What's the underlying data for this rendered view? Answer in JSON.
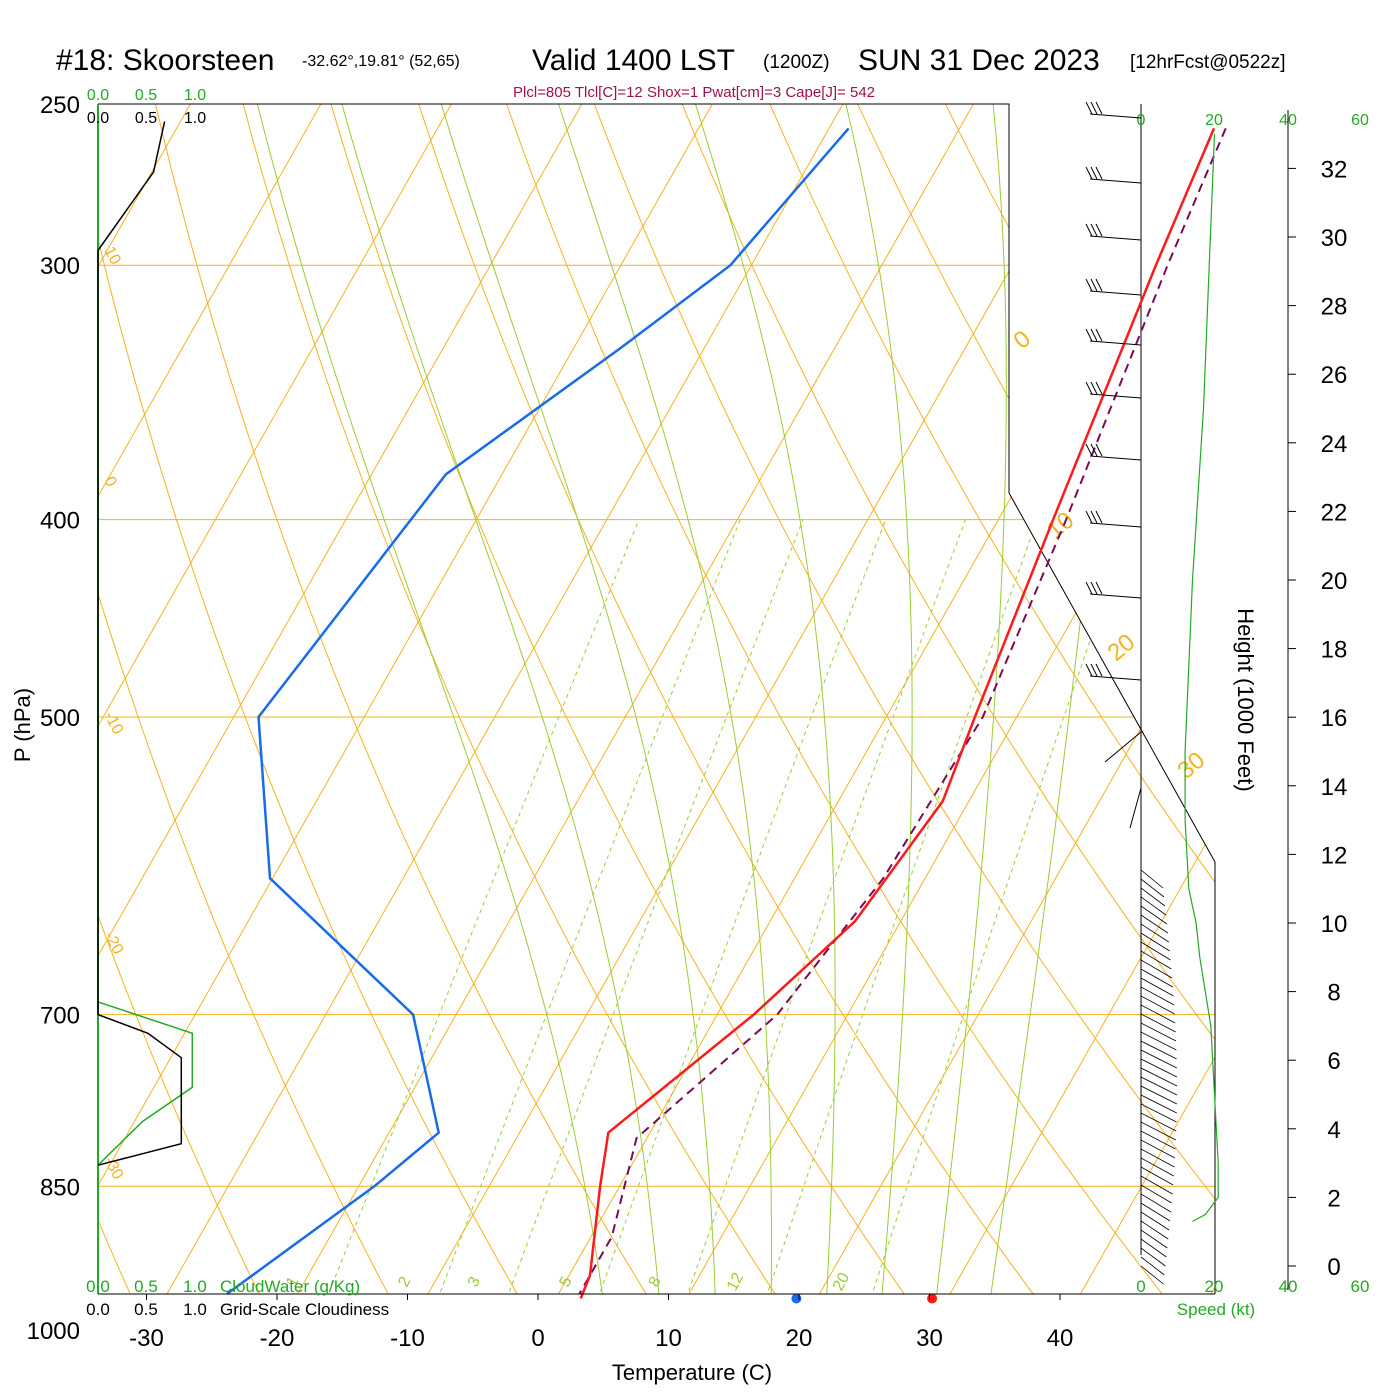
{
  "header": {
    "station": "#18: Skoorsteen",
    "coords": "-32.62°,19.81° (52,65)",
    "valid": "Valid 1400 LST",
    "zulu": "(1200Z)",
    "date": "SUN 31 Dec 2023",
    "forecast": "[12hrFcst@0522z]",
    "indices": "Plcl=805 Tlcl[C]=12 Shox=1 Pwat[cm]=3 Cape[J]= 542"
  },
  "colors": {
    "temperature": "#ff1a1a",
    "dewpoint": "#1a6be8",
    "parcel": "#7a0a5a",
    "isobar_isotherm": "#f5b21e",
    "moist_adiabat": "#9acd32",
    "cloud_water": "#22aa22",
    "axis_green": "#22aa22",
    "indices_text": "#a0104e"
  },
  "chart_data": {
    "type": "skew-t",
    "xlabel": "Temperature (C)",
    "ylabel": "P (hPa)",
    "height_label": "Height (1000 Feet)",
    "temperature_ticks": [
      "-30",
      "-20",
      "-10",
      "0",
      "10",
      "20",
      "30",
      "40"
    ],
    "pressure_ticks": [
      "250",
      "300",
      "400",
      "500",
      "700",
      "850",
      "1000"
    ],
    "height_ticks": [
      "32",
      "30",
      "28",
      "26",
      "24",
      "22",
      "20",
      "18",
      "16",
      "14",
      "12",
      "10",
      "8",
      "6",
      "4",
      "2",
      "0"
    ],
    "skew_isotherm_labels": [
      "10",
      "0",
      "-10",
      "-20",
      "-30"
    ],
    "dry_adiabat_labels": [
      "0",
      "10",
      "20",
      "30"
    ],
    "mixing_ratio_labels": [
      "1",
      "2",
      "3",
      "5",
      "8",
      "12",
      "20"
    ],
    "cloud_scale_top_green": [
      "0.0",
      "0.5",
      "1.0"
    ],
    "cloud_scale_top_black": [
      "0.0",
      "0.5",
      "1.0"
    ],
    "cloud_scale_bottom_green": [
      "0.0",
      "0.5",
      "1.0"
    ],
    "cloud_scale_bottom_black": [
      "0.0",
      "0.5",
      "1.0"
    ],
    "cloud_water_label": "CloudWater (g/Kg)",
    "cloudiness_label": "Grid-Scale Cloudiness",
    "speed_ticks": [
      "0",
      "20",
      "40",
      "60"
    ],
    "speed_label": "Speed (kt)",
    "temperature_profile": [
      {
        "p": 257,
        "t": -0.5
      },
      {
        "p": 300,
        "t": 1.0
      },
      {
        "p": 400,
        "t": 4.2
      },
      {
        "p": 500,
        "t": 6.8
      },
      {
        "p": 550,
        "t": 8.0
      },
      {
        "p": 630,
        "t": 6.5
      },
      {
        "p": 700,
        "t": 2.8
      },
      {
        "p": 800,
        "t": -3.2
      },
      {
        "p": 850,
        "t": -1.5
      },
      {
        "p": 940,
        "t": 1.6
      },
      {
        "p": 965,
        "t": 1.9
      }
    ],
    "dewpoint_profile": [
      {
        "p": 257,
        "t": -28.5
      },
      {
        "p": 300,
        "t": -31.6
      },
      {
        "p": 330,
        "t": -36.5
      },
      {
        "p": 380,
        "t": -44.3
      },
      {
        "p": 500,
        "t": -48.1
      },
      {
        "p": 600,
        "t": -40.2
      },
      {
        "p": 700,
        "t": -23.3
      },
      {
        "p": 800,
        "t": -16.2
      },
      {
        "p": 850,
        "t": -18.8
      },
      {
        "p": 960,
        "t": -25.4
      }
    ],
    "parcel_profile": [
      {
        "p": 257,
        "t": 0.4
      },
      {
        "p": 300,
        "t": 1.9
      },
      {
        "p": 400,
        "t": 5.2
      },
      {
        "p": 500,
        "t": 7.4
      },
      {
        "p": 600,
        "t": 6.8
      },
      {
        "p": 700,
        "t": 4.6
      },
      {
        "p": 805,
        "t": -0.8
      },
      {
        "p": 900,
        "t": 1.6
      },
      {
        "p": 960,
        "t": 1.6
      }
    ],
    "surface_temperature": 30.2,
    "surface_dewpoint": 19.8,
    "wind_speed_profile_kt": [
      {
        "ft": 33000,
        "kt": 40
      },
      {
        "ft": 25000,
        "kt": 34
      },
      {
        "ft": 20000,
        "kt": 28
      },
      {
        "ft": 15000,
        "kt": 24
      },
      {
        "ft": 13000,
        "kt": 24
      },
      {
        "ft": 11000,
        "kt": 26
      },
      {
        "ft": 10000,
        "kt": 30
      },
      {
        "ft": 9000,
        "kt": 32
      },
      {
        "ft": 7000,
        "kt": 38
      },
      {
        "ft": 5000,
        "kt": 40
      },
      {
        "ft": 3000,
        "kt": 42
      },
      {
        "ft": 2000,
        "kt": 42
      },
      {
        "ft": 1500,
        "kt": 35
      },
      {
        "ft": 1300,
        "kt": 28
      }
    ],
    "cloud_water_profile": [
      {
        "p": 690,
        "v": 0.0
      },
      {
        "p": 715,
        "v": 0.85
      },
      {
        "p": 760,
        "v": 0.85
      },
      {
        "p": 790,
        "v": 0.4
      },
      {
        "p": 830,
        "v": 0.0
      }
    ],
    "cloudiness_profile": [
      {
        "p": 255,
        "v": 0.6
      },
      {
        "p": 270,
        "v": 0.5
      },
      {
        "p": 295,
        "v": 0.0
      },
      {
        "p": 700,
        "v": 0.0
      },
      {
        "p": 715,
        "v": 0.45
      },
      {
        "p": 735,
        "v": 0.75
      },
      {
        "p": 810,
        "v": 0.75
      },
      {
        "p": 830,
        "v": 0.0
      }
    ]
  }
}
